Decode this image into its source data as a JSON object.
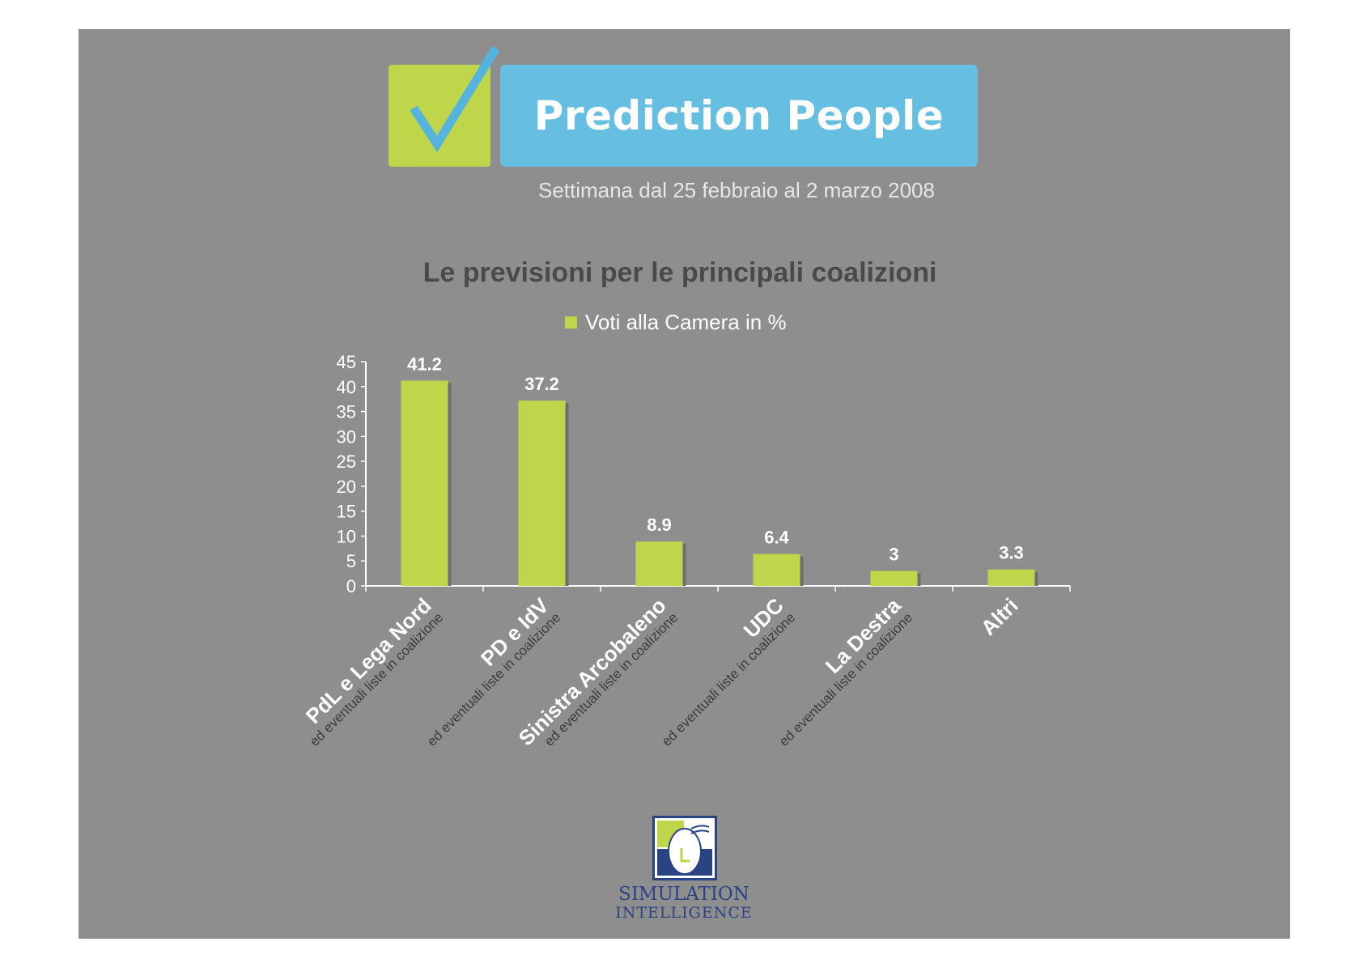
{
  "brand": {
    "name": "Prediction People",
    "week": "Settimana dal 25 febbraio al 2 marzo 2008"
  },
  "footer_brand": {
    "line1": "SIMULATION",
    "line2": "INTELLIGENCE"
  },
  "colors": {
    "background": "#8e8e8e",
    "bar": "#c0d64a",
    "banner": "#66bfe0",
    "brand_text": "#2a4382"
  },
  "chart_data": {
    "type": "bar",
    "title": "Le previsioni per le principali coalizioni",
    "categories": [
      "PdL e Lega Nord",
      "PD e IdV",
      "Sinistra Arcobaleno",
      "UDC",
      "La Destra",
      "Altri"
    ],
    "category_notes": [
      "ed eventuali liste in coalizione",
      "ed eventuali liste in coalizione",
      "ed eventuali liste in coalizione",
      "ed eventuali liste in coalizione",
      "ed eventuali liste in coalizione",
      ""
    ],
    "series": [
      {
        "name": "Voti alla Camera in %",
        "values": [
          41.2,
          37.2,
          8.9,
          6.4,
          3,
          3.3
        ]
      }
    ],
    "value_labels": [
      "41.2",
      "37.2",
      "8.9",
      "6.4",
      "3",
      "3.3"
    ],
    "ylim": [
      0,
      45
    ],
    "yticks": [
      0,
      5,
      10,
      15,
      20,
      25,
      30,
      35,
      40,
      45
    ],
    "legend_position": "top",
    "grid": false
  }
}
